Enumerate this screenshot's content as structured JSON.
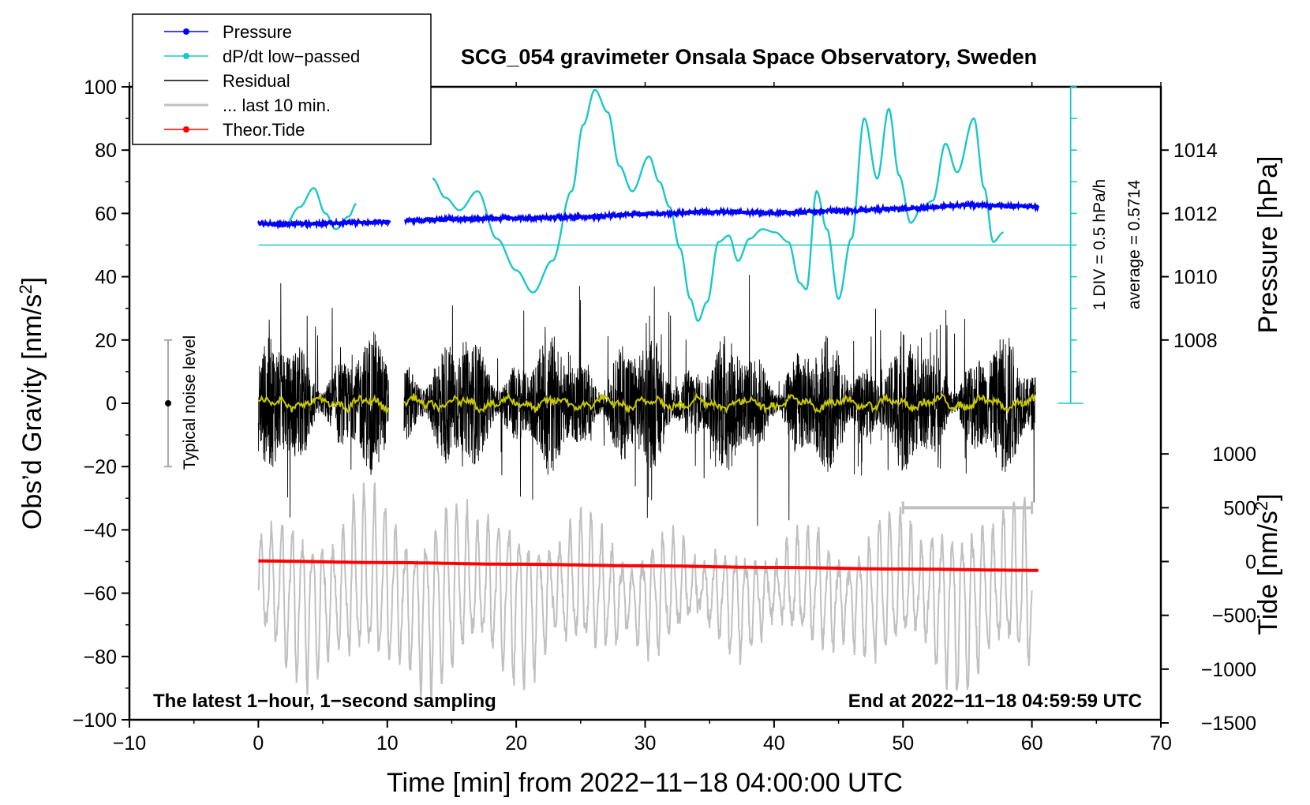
{
  "chart_data": {
    "type": "line",
    "title": "SCG_054 gravimeter Onsala Space Observatory, Sweden",
    "xlabel": "Time [min] from 2022−11−18 04:00:00 UTC",
    "ylabel_left": "Obs’d Gravity [nm/s",
    "ylabel_left_sup": "2",
    "ylabel_left_close": "]",
    "ylabel_right_pressure": "Pressure [hPa]",
    "ylabel_right_tide": "Tide [nm/s",
    "ylabel_right_tide_sup": "2",
    "ylabel_right_tide_close": "]",
    "xlim": [
      -10,
      70
    ],
    "ylim_left": [
      -100,
      100
    ],
    "x_ticks": [
      -10,
      0,
      10,
      20,
      30,
      40,
      50,
      60,
      70
    ],
    "x_tick_labels": [
      "−10",
      "0",
      "10",
      "20",
      "30",
      "40",
      "50",
      "60",
      "70"
    ],
    "y_ticks": [
      100,
      80,
      60,
      40,
      20,
      0,
      -20,
      -40,
      -60,
      -80,
      -100
    ],
    "y_tick_labels": [
      "100",
      "80",
      "60",
      "40",
      "20",
      "0",
      "−20",
      "−40",
      "−60",
      "−80",
      "−100"
    ],
    "pressure_axis": {
      "ticks": [
        1014,
        1012,
        1010,
        1008
      ],
      "tick_labels": [
        "1014",
        "1012",
        "1010",
        "1008"
      ],
      "hPa_per_20_nms2": 2
    },
    "tide_axis": {
      "ticks": [
        1000,
        500,
        0,
        -500,
        -1000,
        -1500
      ],
      "tick_labels": [
        "1000",
        "500",
        "0",
        "−500",
        "−1000",
        "−1500"
      ]
    },
    "legend": {
      "position": "top-left",
      "entries": [
        {
          "label": "Pressure",
          "color": "#0000ff",
          "marker": true
        },
        {
          "label": "dP/dt low−passed",
          "color": "#1cc7c7",
          "marker": true
        },
        {
          "label": "Residual",
          "color": "#000000",
          "marker": false
        },
        {
          "label": "... last 10 min.",
          "color": "#c0c0c0",
          "marker": false
        },
        {
          "label": "Theor.Tide",
          "color": "#ff0000",
          "marker": true
        }
      ]
    },
    "series": [
      {
        "name": "Pressure",
        "color": "#0000ff",
        "segments": [
          {
            "x": [
              0,
              2,
              4,
              6,
              8,
              10.2
            ],
            "y": [
              56.8,
              56.6,
              56.8,
              57.0,
              57.2,
              57.4
            ]
          },
          {
            "x": [
              11.4,
              15,
              20,
              25,
              30,
              35,
              40,
              45,
              50,
              55,
              60.5
            ],
            "y": [
              57.7,
              58.2,
              58.5,
              58.8,
              59.8,
              60.5,
              60.2,
              60.8,
              61.5,
              62.6,
              62.2
            ]
          }
        ]
      },
      {
        "name": "dP/dt low-passed",
        "color": "#1cc7c7",
        "baseline": 50,
        "segments": [
          {
            "x": [
              2.0,
              3.2,
              4.3,
              5.2,
              6.0,
              7.0,
              7.6
            ],
            "y": [
              56,
              62,
              68,
              60,
              55,
              59,
              63
            ]
          },
          {
            "x": [
              13.5,
              14.5,
              15.6,
              17.0,
              18.5,
              20.0,
              21.3,
              22.8,
              24.3,
              25.2,
              26.1,
              27.1,
              28.0,
              29.0,
              30.3,
              31.1,
              31.9,
              32.7,
              33.5,
              34.1,
              34.8,
              35.7,
              36.5,
              37.2,
              38.1,
              39.1,
              40.1,
              41.1,
              42.0,
              42.5,
              43.3,
              44.1,
              45.0,
              46.0,
              47.0,
              48.0,
              48.9,
              49.7,
              50.6,
              51.5,
              52.3,
              53.3,
              54.2,
              55.5,
              56.3,
              57.0,
              57.8
            ],
            "y": [
              71,
              65,
              61,
              67,
              52,
              42,
              35,
              45,
              67,
              88,
              99,
              92,
              75,
              67,
              78,
              70,
              62,
              49,
              33,
              26,
              32,
              51,
              53,
              45,
              52,
              55,
              54,
              51,
              38,
              36,
              67,
              55,
              33,
              52,
              90,
              71,
              93,
              72,
              57,
              62,
              64,
              82,
              73,
              90,
              68,
              51,
              54
            ]
          }
        ]
      },
      {
        "name": "Residual",
        "color": "#000000"
      },
      {
        "name": "Residual smoothed",
        "color": "#c8c800"
      },
      {
        "name": "... last 10 min.",
        "color": "#c0c0c0",
        "x_range": [
          50,
          60
        ]
      },
      {
        "name": "Theor.Tide",
        "color": "#ff0000",
        "x": [
          0,
          10,
          20,
          30,
          40,
          50,
          60.5
        ],
        "y_tide": [
          5,
          -10,
          -25,
          -40,
          -55,
          -70,
          -82
        ]
      }
    ],
    "noise_level": {
      "label": "Typical noise level",
      "x": -7,
      "y": 0,
      "range": [
        -20,
        20
      ]
    },
    "pressure_scale_bar": {
      "x": 63,
      "y_range": [
        0,
        100
      ],
      "text_1": "1 DIV = 0.5 hPa/h",
      "text_2": "average = 0.5714"
    },
    "annotations": {
      "bottom_left": "The latest 1−hour, 1−second sampling",
      "bottom_right": "End at 2022−11−18 04:59:59 UTC"
    }
  }
}
